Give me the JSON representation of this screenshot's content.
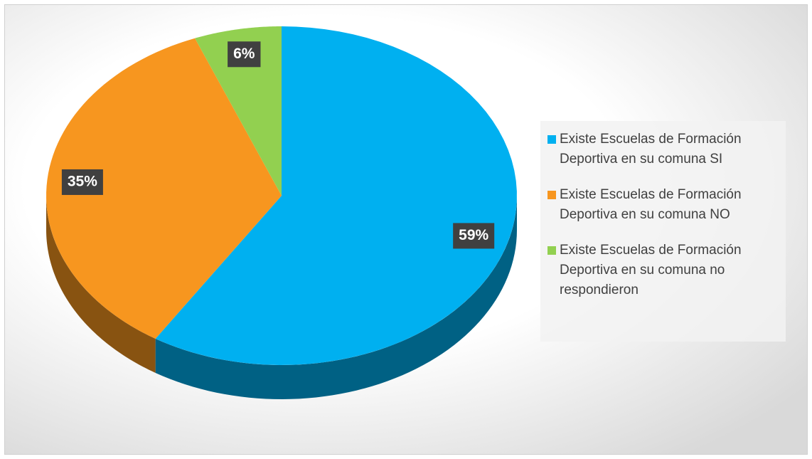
{
  "chart_data": {
    "type": "pie",
    "categories": [
      "Existe Escuelas de Formación Deportiva en su comuna SI",
      "Existe Escuelas de Formación Deportiva en su comuna NO",
      "Existe Escuelas de Formación Deportiva en su comuna no respondieron"
    ],
    "values": [
      59,
      35,
      6
    ],
    "value_labels": [
      "59%",
      "35%",
      "6%"
    ],
    "colors": [
      "#00b0f0",
      "#f7961f",
      "#92d050"
    ],
    "legend": "right"
  }
}
